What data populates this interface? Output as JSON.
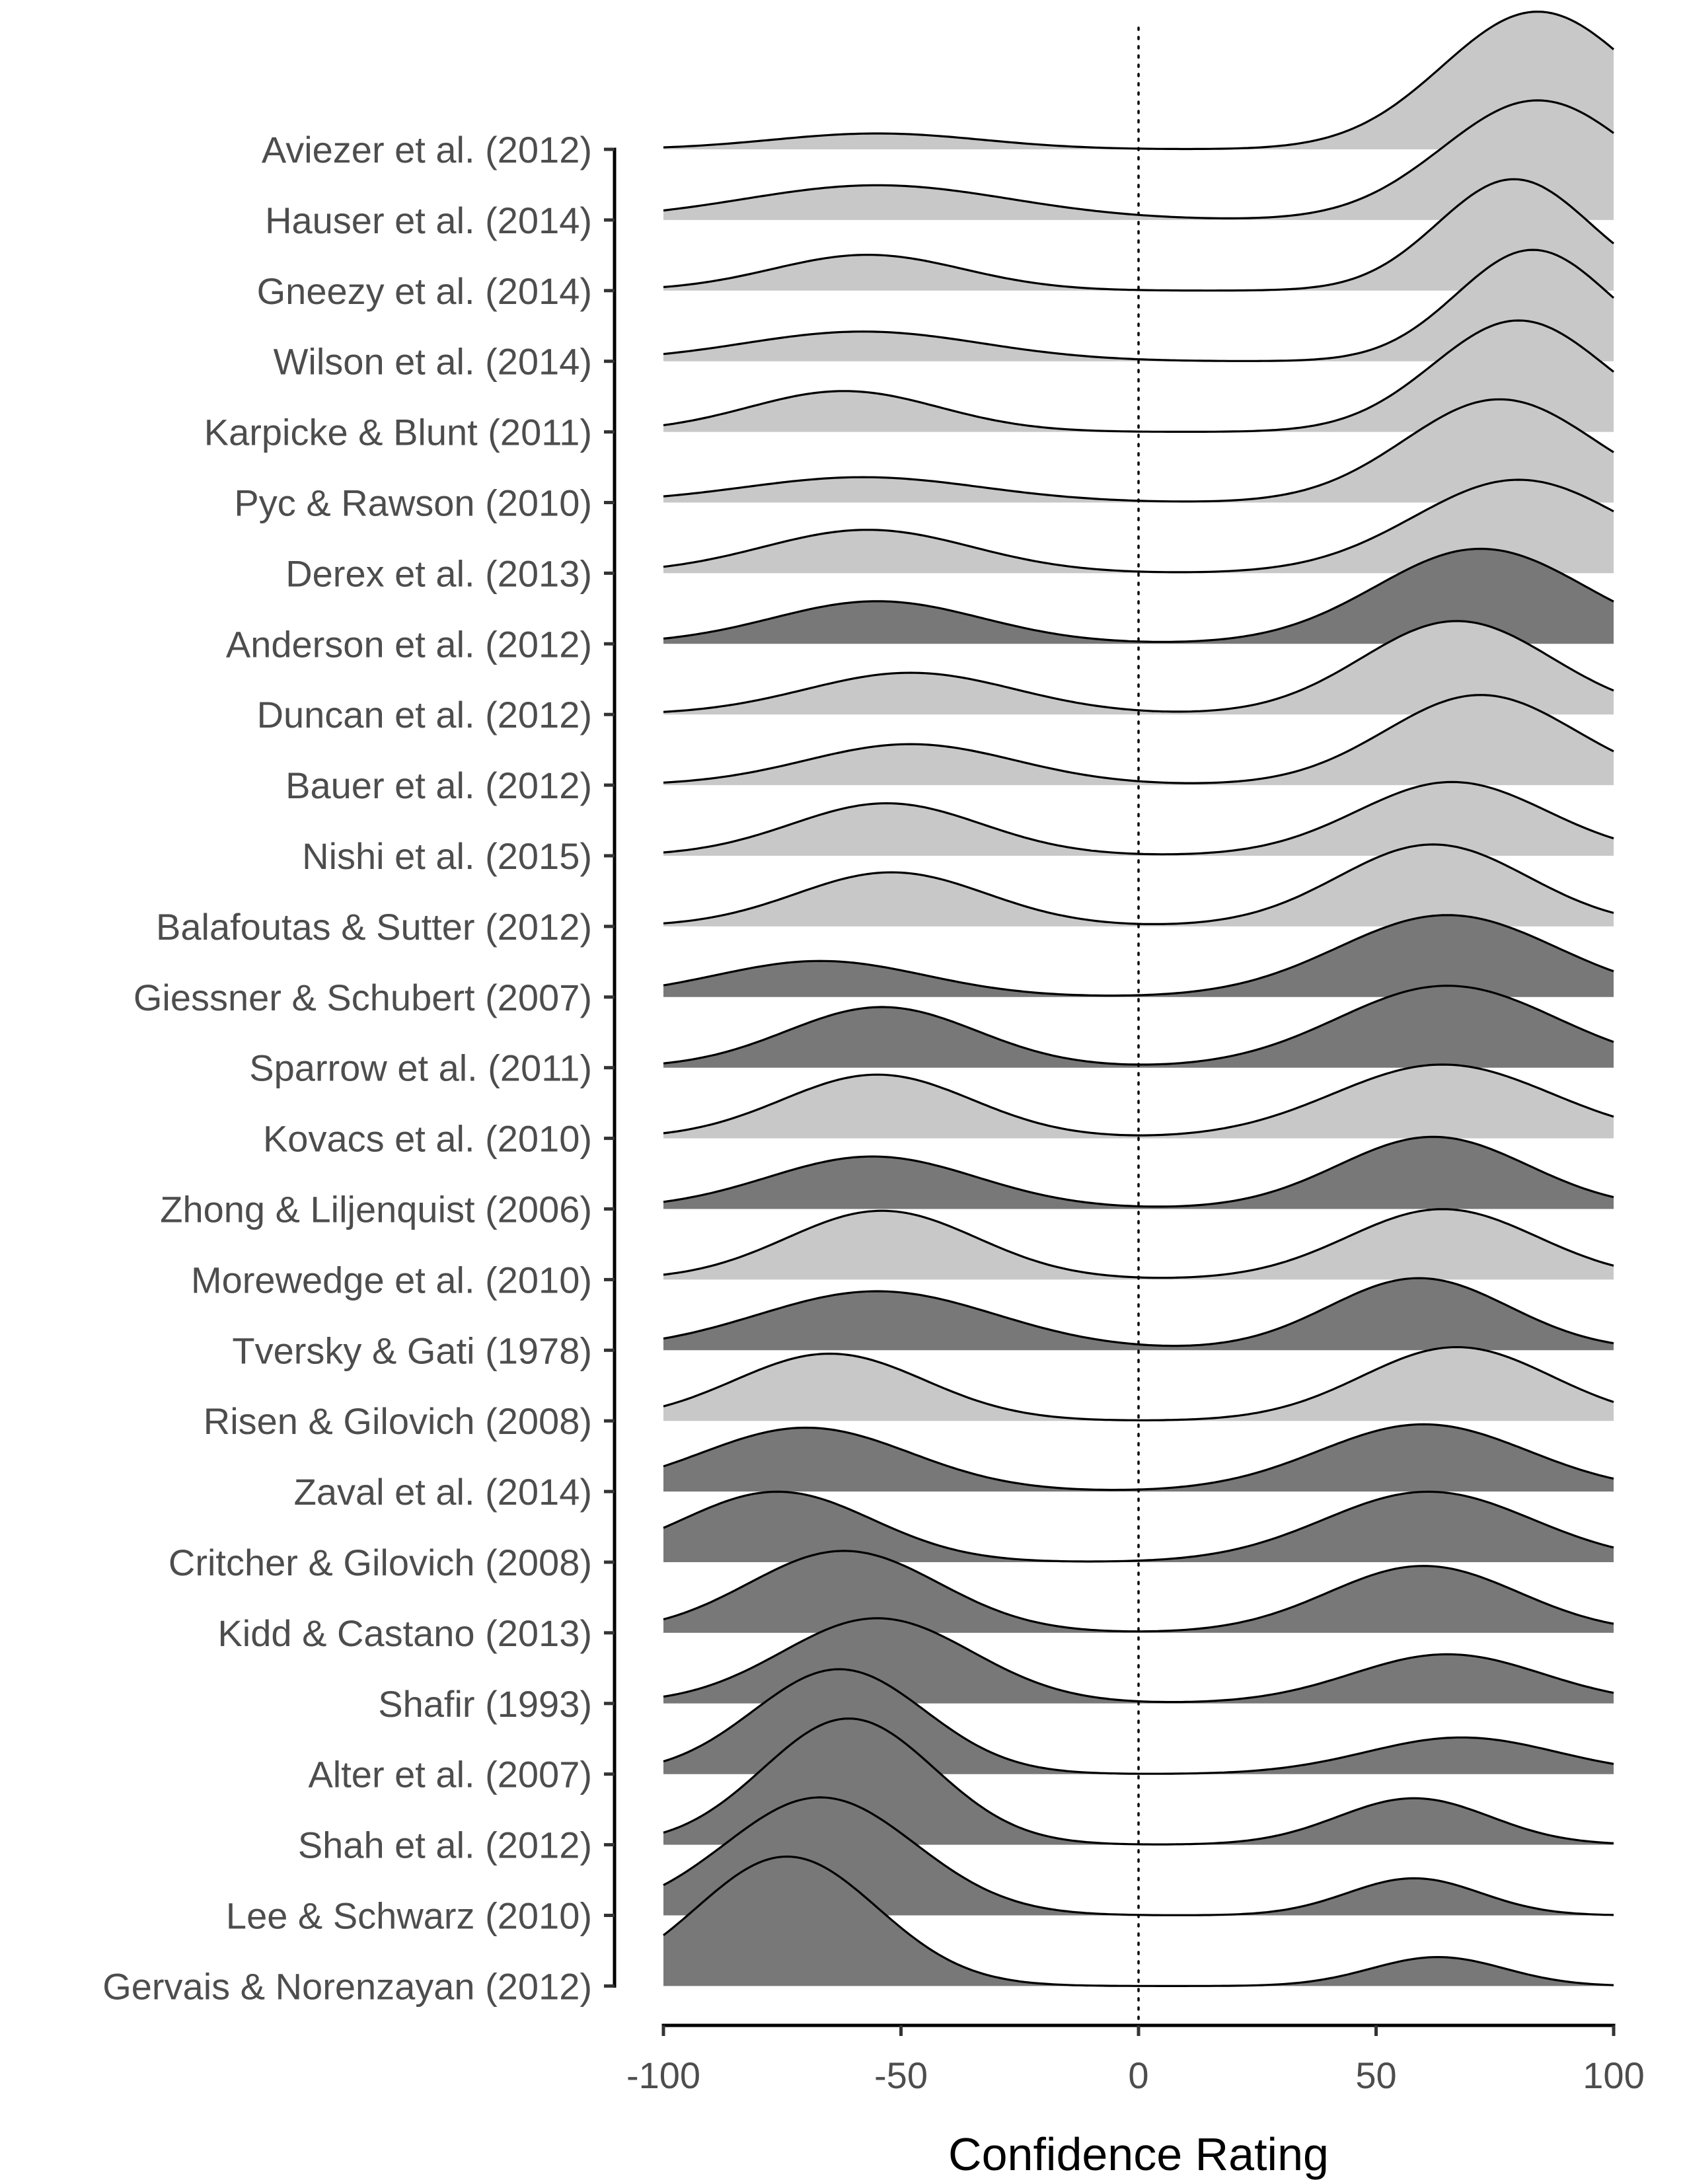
{
  "chart_data": {
    "type": "ridgeline",
    "title": "",
    "xlabel": "Confidence Rating",
    "ylabel": "",
    "xlim": [
      -100,
      100
    ],
    "xticks": [
      -100,
      -50,
      0,
      50,
      100
    ],
    "reference_line_x": 0,
    "grid": false,
    "legend": "none",
    "colors": {
      "light": "#c8c8c8",
      "dark": "#787878",
      "outline": "#000000"
    },
    "series": [
      {
        "name": "Aviezer et al. (2012)",
        "fill": "light",
        "peak": 0.84,
        "components": [
          [
            -55,
            22,
            0.09
          ],
          [
            84,
            20,
            0.78
          ]
        ]
      },
      {
        "name": "Hauser et al. (2014)",
        "fill": "light",
        "peak": 0.73,
        "components": [
          [
            -55,
            28,
            0.18
          ],
          [
            84,
            20,
            0.62
          ]
        ]
      },
      {
        "name": "Gneezy et al. (2014)",
        "fill": "light",
        "peak": 0.68,
        "components": [
          [
            -57,
            20,
            0.18
          ],
          [
            79,
            16,
            0.56
          ]
        ]
      },
      {
        "name": "Wilson et al. (2014)",
        "fill": "light",
        "peak": 0.68,
        "components": [
          [
            -58,
            25,
            0.16
          ],
          [
            83,
            16,
            0.6
          ]
        ]
      },
      {
        "name": "Karpicke & Blunt (2011)",
        "fill": "light",
        "peak": 0.68,
        "components": [
          [
            -62,
            20,
            0.22
          ],
          [
            80,
            18,
            0.6
          ]
        ]
      },
      {
        "name": "Pyc & Rawson (2010)",
        "fill": "light",
        "peak": 0.63,
        "components": [
          [
            -58,
            25,
            0.14
          ],
          [
            76,
            20,
            0.57
          ]
        ]
      },
      {
        "name": "Derex et al. (2013)",
        "fill": "light",
        "peak": 0.57,
        "components": [
          [
            -57,
            22,
            0.26
          ],
          [
            80,
            22,
            0.56
          ]
        ]
      },
      {
        "name": "Anderson et al. (2012)",
        "fill": "dark",
        "peak": 0.58,
        "components": [
          [
            -55,
            22,
            0.26
          ],
          [
            72,
            22,
            0.58
          ]
        ]
      },
      {
        "name": "Duncan et al. (2012)",
        "fill": "light",
        "peak": 0.57,
        "components": [
          [
            -48,
            22,
            0.25
          ],
          [
            67,
            20,
            0.56
          ]
        ]
      },
      {
        "name": "Bauer et al. (2012)",
        "fill": "light",
        "peak": 0.55,
        "components": [
          [
            -48,
            22,
            0.25
          ],
          [
            72,
            20,
            0.55
          ]
        ]
      },
      {
        "name": "Nishi et al. (2015)",
        "fill": "light",
        "peak": 0.45,
        "components": [
          [
            -53,
            20,
            0.32
          ],
          [
            66,
            20,
            0.45
          ]
        ]
      },
      {
        "name": "Balafoutas & Sutter (2012)",
        "fill": "light",
        "peak": 0.5,
        "components": [
          [
            -52,
            20,
            0.33
          ],
          [
            62,
            20,
            0.5
          ]
        ]
      },
      {
        "name": "Giessner & Schubert (2007)",
        "fill": "dark",
        "peak": 0.5,
        "components": [
          [
            -67,
            22,
            0.22
          ],
          [
            65,
            23,
            0.5
          ]
        ]
      },
      {
        "name": "Sparrow et al. (2011)",
        "fill": "dark",
        "peak": 0.5,
        "components": [
          [
            -54,
            20,
            0.37
          ],
          [
            65,
            23,
            0.5
          ]
        ]
      },
      {
        "name": "Kovacs et al. (2010)",
        "fill": "light",
        "peak": 0.45,
        "components": [
          [
            -55,
            20,
            0.38
          ],
          [
            64,
            23,
            0.44
          ]
        ]
      },
      {
        "name": "Zhong & Liljenquist (2006)",
        "fill": "dark",
        "peak": 0.44,
        "components": [
          [
            -56,
            22,
            0.32
          ],
          [
            62,
            20,
            0.44
          ]
        ]
      },
      {
        "name": "Morewedge et al. (2010)",
        "fill": "light",
        "peak": 0.43,
        "components": [
          [
            -54,
            20,
            0.42
          ],
          [
            64,
            20,
            0.43
          ]
        ]
      },
      {
        "name": "Tversky & Gati (1978)",
        "fill": "dark",
        "peak": 0.44,
        "components": [
          [
            -55,
            25,
            0.36
          ],
          [
            59,
            19,
            0.44
          ]
        ]
      },
      {
        "name": "Risen & Gilovich (2008)",
        "fill": "light",
        "peak": 0.45,
        "components": [
          [
            -65,
            20,
            0.41
          ],
          [
            67,
            20,
            0.45
          ]
        ]
      },
      {
        "name": "Zaval et al. (2014)",
        "fill": "dark",
        "peak": 0.41,
        "components": [
          [
            -70,
            22,
            0.38
          ],
          [
            60,
            22,
            0.4
          ]
        ]
      },
      {
        "name": "Critcher & Gilovich (2008)",
        "fill": "dark",
        "peak": 0.43,
        "components": [
          [
            -76,
            20,
            0.42
          ],
          [
            61,
            22,
            0.42
          ]
        ]
      },
      {
        "name": "Kidd & Castano (2013)",
        "fill": "dark",
        "peak": 0.5,
        "components": [
          [
            -62,
            20,
            0.49
          ],
          [
            60,
            20,
            0.4
          ]
        ]
      },
      {
        "name": "Shafir (1993)",
        "fill": "dark",
        "peak": 0.52,
        "components": [
          [
            -55,
            20,
            0.52
          ],
          [
            65,
            20,
            0.3
          ]
        ]
      },
      {
        "name": "Alter et al. (2007)",
        "fill": "dark",
        "peak": 0.64,
        "components": [
          [
            -63,
            18,
            0.63
          ],
          [
            68,
            20,
            0.22
          ]
        ]
      },
      {
        "name": "Shah et al. (2012)",
        "fill": "dark",
        "peak": 0.77,
        "components": [
          [
            -61,
            18,
            0.76
          ],
          [
            58,
            16,
            0.28
          ]
        ]
      },
      {
        "name": "Lee & Schwarz (2010)",
        "fill": "dark",
        "peak": 0.72,
        "components": [
          [
            -67,
            20,
            0.7
          ],
          [
            58,
            14,
            0.22
          ]
        ]
      },
      {
        "name": "Gervais & Norenzayan (2012)",
        "fill": "dark",
        "peak": 0.79,
        "components": [
          [
            -74,
            19,
            0.76
          ],
          [
            63,
            14,
            0.17
          ]
        ]
      }
    ]
  }
}
